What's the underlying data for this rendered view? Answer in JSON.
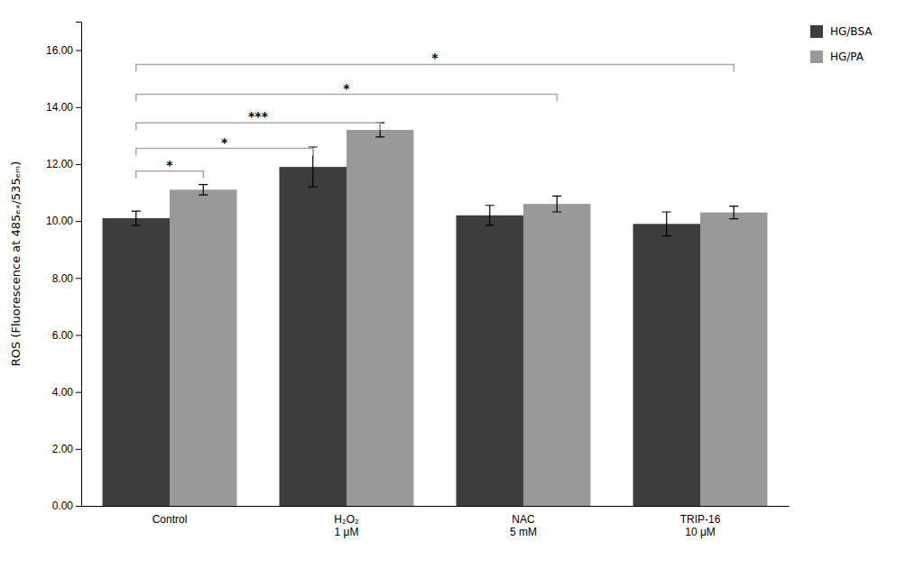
{
  "chart_data": {
    "type": "bar",
    "categories": [
      "Control",
      "H₂O₂\n1 μM",
      "NAC\n5 mM",
      "TRIP-16\n10 μM"
    ],
    "series": [
      {
        "name": "HG/BSA",
        "color": "#3d3d3d",
        "values": [
          10.1,
          11.9,
          10.2,
          9.9
        ],
        "errors": [
          0.25,
          0.7,
          0.35,
          0.42
        ]
      },
      {
        "name": "HG/PA",
        "color": "#999999",
        "values": [
          11.1,
          13.2,
          10.6,
          10.3
        ],
        "errors": [
          0.18,
          0.25,
          0.28,
          0.22
        ]
      }
    ],
    "y_label": "ROS (Fluorescence at 485ₑₓ/535ₑₘ)",
    "ylim": [
      0,
      17.0
    ],
    "yticks": [
      {
        "value": 0.0,
        "label": "0.00"
      },
      {
        "value": 2.0,
        "label": "2.00"
      },
      {
        "value": 4.0,
        "label": "4.00"
      },
      {
        "value": 6.0,
        "label": "6.00"
      },
      {
        "value": 8.0,
        "label": "8.00"
      },
      {
        "value": 10.0,
        "label": "10.00"
      },
      {
        "value": 12.0,
        "label": "12.00"
      },
      {
        "value": 14.0,
        "label": "14.00"
      },
      {
        "value": 16.0,
        "label": "16.00"
      }
    ],
    "grid": false,
    "legend": "upper right",
    "annotations": [
      {
        "text": "*",
        "y": 11.75,
        "color": "#aaaaaa",
        "from": {
          "series": "HG/BSA",
          "category": "Control"
        },
        "to": {
          "series": "HG/PA",
          "category": "Control"
        }
      },
      {
        "text": "*",
        "y": 12.55,
        "color": "#aaaaaa",
        "from": {
          "series": "HG/BSA",
          "category": "Control"
        },
        "to": {
          "series": "HG/BSA",
          "category": "H₂O₂\n1 μM"
        }
      },
      {
        "text": "***",
        "y": 13.45,
        "color": "#aaaaaa",
        "from": {
          "series": "HG/BSA",
          "category": "Control"
        },
        "to": {
          "series": "HG/PA",
          "category": "H₂O₂\n1 μM"
        }
      },
      {
        "text": "*",
        "y": 14.45,
        "color": "#aaaaaa",
        "from": {
          "series": "HG/BSA",
          "category": "Control"
        },
        "to": {
          "series": "HG/PA",
          "category": "NAC\n5 mM"
        }
      },
      {
        "text": "*",
        "y": 15.5,
        "color": "#aaaaaa",
        "from": {
          "series": "HG/BSA",
          "category": "Control"
        },
        "to": {
          "series": "HG/PA",
          "category": "TRIP-16\n10 μM"
        }
      }
    ]
  }
}
